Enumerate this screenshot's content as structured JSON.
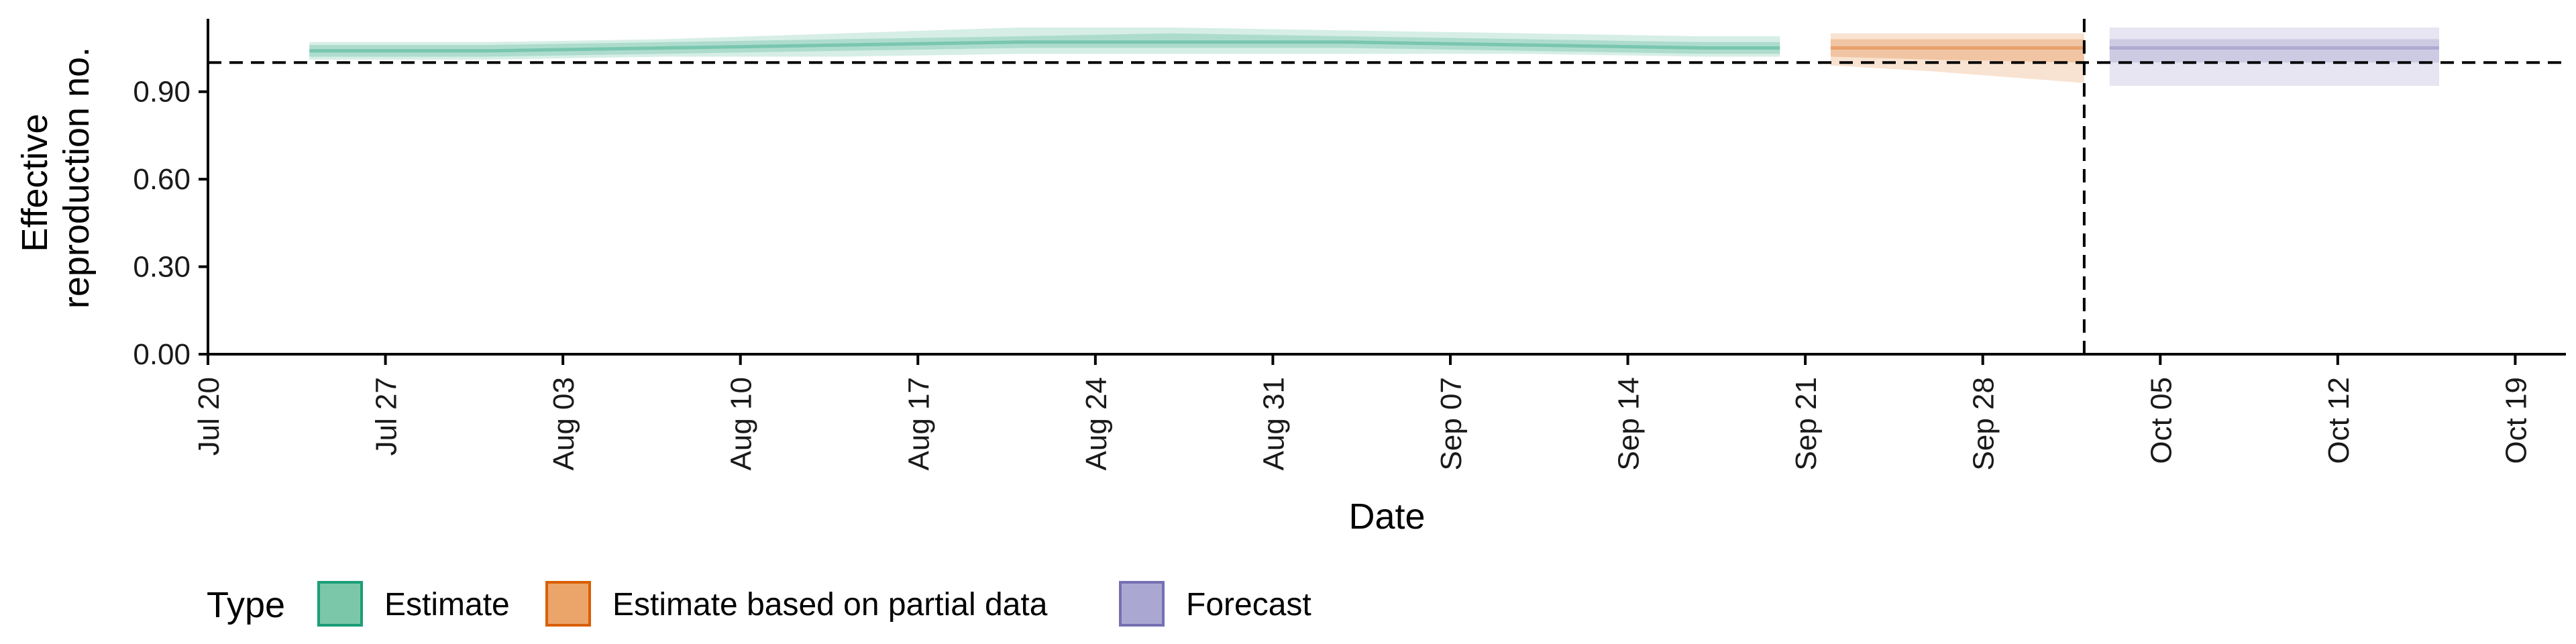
{
  "chart_data": {
    "type": "area",
    "title": "",
    "xlabel": "Date",
    "ylabel": [
      "Effective",
      "reproduction no."
    ],
    "x_ticks": [
      "Jul 20",
      "Jul 27",
      "Aug 03",
      "Aug 10",
      "Aug 17",
      "Aug 24",
      "Aug 31",
      "Sep 07",
      "Sep 14",
      "Sep 21",
      "Sep 28",
      "Oct 05",
      "Oct 12",
      "Oct 19"
    ],
    "x_range": [
      "2020-07-20",
      "2020-10-21"
    ],
    "y_ticks": [
      "0.00",
      "0.30",
      "0.60",
      "0.90"
    ],
    "ylim": [
      0,
      1.15
    ],
    "reference_line_y": 1.0,
    "reference_line_x": "2020-10-02",
    "grid": false,
    "legend": {
      "title": "Type",
      "position": "bottom-left",
      "entries": [
        {
          "label": "Estimate",
          "fill": "#7bc7aa",
          "stroke": "#1b9e77"
        },
        {
          "label": "Estimate based on partial data",
          "fill": "#eba56b",
          "stroke": "#d95f02"
        },
        {
          "label": "Forecast",
          "fill": "#aaa8d2",
          "stroke": "#7570b3"
        }
      ]
    },
    "series": [
      {
        "name": "Estimate",
        "color": "#1b9e77",
        "points": [
          {
            "x": "2020-07-24",
            "median": 1.04,
            "lower": 1.02,
            "upper": 1.06,
            "lower_outer": 1.01,
            "upper_outer": 1.07
          },
          {
            "x": "2020-07-31",
            "median": 1.04,
            "lower": 1.02,
            "upper": 1.06,
            "lower_outer": 1.01,
            "upper_outer": 1.07
          },
          {
            "x": "2020-08-07",
            "median": 1.05,
            "lower": 1.03,
            "upper": 1.07,
            "lower_outer": 1.02,
            "upper_outer": 1.08
          },
          {
            "x": "2020-08-14",
            "median": 1.06,
            "lower": 1.04,
            "upper": 1.08,
            "lower_outer": 1.02,
            "upper_outer": 1.1
          },
          {
            "x": "2020-08-21",
            "median": 1.07,
            "lower": 1.05,
            "upper": 1.09,
            "lower_outer": 1.03,
            "upper_outer": 1.12
          },
          {
            "x": "2020-08-27",
            "median": 1.07,
            "lower": 1.05,
            "upper": 1.1,
            "lower_outer": 1.03,
            "upper_outer": 1.12
          },
          {
            "x": "2020-09-03",
            "median": 1.07,
            "lower": 1.05,
            "upper": 1.09,
            "lower_outer": 1.03,
            "upper_outer": 1.11
          },
          {
            "x": "2020-09-10",
            "median": 1.06,
            "lower": 1.04,
            "upper": 1.08,
            "lower_outer": 1.03,
            "upper_outer": 1.1
          },
          {
            "x": "2020-09-17",
            "median": 1.05,
            "lower": 1.03,
            "upper": 1.07,
            "lower_outer": 1.02,
            "upper_outer": 1.09
          },
          {
            "x": "2020-09-20",
            "median": 1.05,
            "lower": 1.03,
            "upper": 1.07,
            "lower_outer": 1.02,
            "upper_outer": 1.09
          }
        ]
      },
      {
        "name": "Estimate based on partial data",
        "color": "#d95f02",
        "points": [
          {
            "x": "2020-09-22",
            "median": 1.05,
            "lower": 1.02,
            "upper": 1.08,
            "lower_outer": 0.99,
            "upper_outer": 1.1
          },
          {
            "x": "2020-09-26",
            "median": 1.05,
            "lower": 1.01,
            "upper": 1.08,
            "lower_outer": 0.97,
            "upper_outer": 1.1
          },
          {
            "x": "2020-10-02",
            "median": 1.05,
            "lower": 1.0,
            "upper": 1.08,
            "lower_outer": 0.93,
            "upper_outer": 1.1
          }
        ]
      },
      {
        "name": "Forecast",
        "color": "#7570b3",
        "points": [
          {
            "x": "2020-10-03",
            "median": 1.05,
            "lower": 1.0,
            "upper": 1.08,
            "lower_outer": 0.92,
            "upper_outer": 1.12
          },
          {
            "x": "2020-10-16",
            "median": 1.05,
            "lower": 1.0,
            "upper": 1.08,
            "lower_outer": 0.92,
            "upper_outer": 1.12
          }
        ]
      }
    ]
  }
}
